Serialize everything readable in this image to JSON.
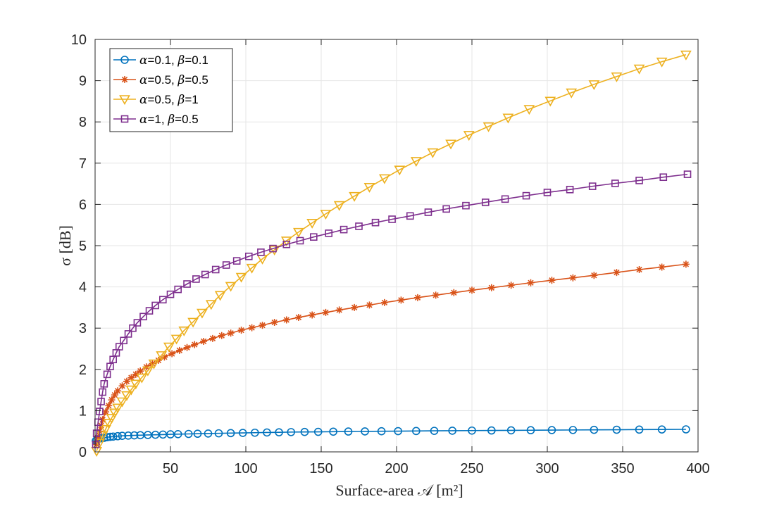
{
  "chart_data": {
    "type": "line",
    "title": "",
    "xlabel": "Surface-area 𝒜 [m²]",
    "ylabel": "σ [dB]",
    "xlim": [
      0,
      400
    ],
    "ylim": [
      0,
      10
    ],
    "xticks": [
      50,
      100,
      150,
      200,
      250,
      300,
      350,
      400
    ],
    "yticks": [
      0,
      1,
      2,
      3,
      4,
      5,
      6,
      7,
      8,
      9,
      10
    ],
    "grid": true,
    "legend_position": "top-left",
    "series": [
      {
        "name": "α=0.1, β=0.1",
        "label_parts": [
          "α",
          "=0.1, ",
          "β",
          "=0.1"
        ],
        "color": "#0072BD",
        "marker": "circle",
        "points": [
          [
            0.5,
            0.27
          ],
          [
            1,
            0.29
          ],
          [
            2,
            0.31
          ],
          [
            4,
            0.33
          ],
          [
            6,
            0.34
          ],
          [
            8,
            0.355
          ],
          [
            10,
            0.365
          ],
          [
            12,
            0.37
          ],
          [
            15,
            0.38
          ],
          [
            18,
            0.39
          ],
          [
            22,
            0.395
          ],
          [
            26,
            0.4
          ],
          [
            30,
            0.405
          ],
          [
            35,
            0.41
          ],
          [
            40,
            0.415
          ],
          [
            45,
            0.42
          ],
          [
            50,
            0.425
          ],
          [
            55,
            0.43
          ],
          [
            62,
            0.435
          ],
          [
            68,
            0.44
          ],
          [
            75,
            0.445
          ],
          [
            82,
            0.45
          ],
          [
            90,
            0.455
          ],
          [
            98,
            0.46
          ],
          [
            106,
            0.465
          ],
          [
            114,
            0.47
          ],
          [
            122,
            0.475
          ],
          [
            130,
            0.48
          ],
          [
            139,
            0.483
          ],
          [
            148,
            0.486
          ],
          [
            158,
            0.49
          ],
          [
            168,
            0.493
          ],
          [
            179,
            0.496
          ],
          [
            190,
            0.5
          ],
          [
            201,
            0.503
          ],
          [
            213,
            0.506
          ],
          [
            225,
            0.51
          ],
          [
            237,
            0.513
          ],
          [
            250,
            0.516
          ],
          [
            263,
            0.519
          ],
          [
            276,
            0.522
          ],
          [
            289,
            0.525
          ],
          [
            303,
            0.528
          ],
          [
            317,
            0.531
          ],
          [
            331,
            0.534
          ],
          [
            346,
            0.537
          ],
          [
            361,
            0.54
          ],
          [
            376,
            0.543
          ],
          [
            392,
            0.546
          ]
        ]
      },
      {
        "name": "α=0.5, β=0.5",
        "label_parts": [
          "α",
          "=0.5, ",
          "β",
          "=0.5"
        ],
        "color": "#D95319",
        "marker": "asterisk",
        "points": [
          [
            1,
            0.18
          ],
          [
            2,
            0.35
          ],
          [
            3,
            0.5
          ],
          [
            4,
            0.64
          ],
          [
            5,
            0.78
          ],
          [
            7,
            0.97
          ],
          [
            9,
            1.12
          ],
          [
            11,
            1.26
          ],
          [
            13,
            1.38
          ],
          [
            15,
            1.48
          ],
          [
            18,
            1.6
          ],
          [
            21,
            1.71
          ],
          [
            24,
            1.8
          ],
          [
            27,
            1.88
          ],
          [
            30,
            1.96
          ],
          [
            34,
            2.06
          ],
          [
            38,
            2.14
          ],
          [
            42,
            2.22
          ],
          [
            46,
            2.3
          ],
          [
            51,
            2.38
          ],
          [
            56,
            2.46
          ],
          [
            61,
            2.53
          ],
          [
            66,
            2.6
          ],
          [
            72,
            2.68
          ],
          [
            78,
            2.75
          ],
          [
            84,
            2.82
          ],
          [
            90,
            2.88
          ],
          [
            97,
            2.95
          ],
          [
            104,
            3.01
          ],
          [
            111,
            3.07
          ],
          [
            119,
            3.14
          ],
          [
            127,
            3.2
          ],
          [
            135,
            3.26
          ],
          [
            144,
            3.32
          ],
          [
            153,
            3.38
          ],
          [
            162,
            3.44
          ],
          [
            172,
            3.5
          ],
          [
            182,
            3.56
          ],
          [
            192,
            3.62
          ],
          [
            203,
            3.68
          ],
          [
            214,
            3.74
          ],
          [
            226,
            3.8
          ],
          [
            238,
            3.86
          ],
          [
            250,
            3.92
          ],
          [
            263,
            3.98
          ],
          [
            276,
            4.04
          ],
          [
            289,
            4.1
          ],
          [
            303,
            4.16
          ],
          [
            317,
            4.22
          ],
          [
            331,
            4.28
          ],
          [
            346,
            4.35
          ],
          [
            361,
            4.42
          ],
          [
            376,
            4.48
          ],
          [
            392,
            4.55
          ]
        ]
      },
      {
        "name": "α=0.5, β=1",
        "label_parts": [
          "α",
          "=0.5, ",
          "β",
          "=1"
        ],
        "color": "#EDB120",
        "marker": "triangle-down",
        "points": [
          [
            1,
            0.02
          ],
          [
            3,
            0.22
          ],
          [
            5,
            0.4
          ],
          [
            7,
            0.55
          ],
          [
            9,
            0.7
          ],
          [
            11,
            0.82
          ],
          [
            13,
            0.95
          ],
          [
            15,
            1.07
          ],
          [
            18,
            1.22
          ],
          [
            21,
            1.37
          ],
          [
            24,
            1.51
          ],
          [
            27,
            1.65
          ],
          [
            31,
            1.8
          ],
          [
            35,
            1.97
          ],
          [
            39,
            2.14
          ],
          [
            44,
            2.34
          ],
          [
            49,
            2.55
          ],
          [
            54,
            2.74
          ],
          [
            59,
            2.94
          ],
          [
            65,
            3.15
          ],
          [
            71,
            3.37
          ],
          [
            77,
            3.58
          ],
          [
            83,
            3.8
          ],
          [
            90,
            4.02
          ],
          [
            97,
            4.24
          ],
          [
            104,
            4.46
          ],
          [
            111,
            4.68
          ],
          [
            119,
            4.9
          ],
          [
            127,
            5.12
          ],
          [
            135,
            5.33
          ],
          [
            144,
            5.55
          ],
          [
            153,
            5.77
          ],
          [
            162,
            5.98
          ],
          [
            172,
            6.2
          ],
          [
            182,
            6.42
          ],
          [
            192,
            6.63
          ],
          [
            202,
            6.84
          ],
          [
            213,
            7.05
          ],
          [
            224,
            7.26
          ],
          [
            236,
            7.47
          ],
          [
            248,
            7.68
          ],
          [
            261,
            7.89
          ],
          [
            274,
            8.1
          ],
          [
            288,
            8.31
          ],
          [
            302,
            8.51
          ],
          [
            316,
            8.71
          ],
          [
            331,
            8.91
          ],
          [
            346,
            9.1
          ],
          [
            361,
            9.29
          ],
          [
            376,
            9.46
          ],
          [
            392,
            9.63
          ]
        ]
      },
      {
        "name": "α=1, β=0.5",
        "label_parts": [
          "α",
          "=1, ",
          "β",
          "=0.5"
        ],
        "color": "#7E2F8E",
        "marker": "square",
        "points": [
          [
            0.5,
            0.18
          ],
          [
            1,
            0.45
          ],
          [
            2,
            0.72
          ],
          [
            3,
            0.98
          ],
          [
            4,
            1.22
          ],
          [
            5,
            1.45
          ],
          [
            6,
            1.65
          ],
          [
            8,
            1.88
          ],
          [
            10,
            2.07
          ],
          [
            12,
            2.24
          ],
          [
            14,
            2.4
          ],
          [
            16,
            2.55
          ],
          [
            19,
            2.7
          ],
          [
            22,
            2.86
          ],
          [
            25,
            3.0
          ],
          [
            28,
            3.13
          ],
          [
            32,
            3.28
          ],
          [
            36,
            3.42
          ],
          [
            40,
            3.55
          ],
          [
            45,
            3.69
          ],
          [
            50,
            3.82
          ],
          [
            55,
            3.94
          ],
          [
            61,
            4.07
          ],
          [
            67,
            4.19
          ],
          [
            73,
            4.3
          ],
          [
            80,
            4.42
          ],
          [
            87,
            4.53
          ],
          [
            94,
            4.63
          ],
          [
            102,
            4.74
          ],
          [
            110,
            4.84
          ],
          [
            118,
            4.93
          ],
          [
            127,
            5.03
          ],
          [
            136,
            5.12
          ],
          [
            145,
            5.21
          ],
          [
            155,
            5.3
          ],
          [
            165,
            5.39
          ],
          [
            175,
            5.47
          ],
          [
            186,
            5.56
          ],
          [
            197,
            5.64
          ],
          [
            209,
            5.72
          ],
          [
            221,
            5.81
          ],
          [
            233,
            5.89
          ],
          [
            246,
            5.97
          ],
          [
            259,
            6.05
          ],
          [
            272,
            6.13
          ],
          [
            286,
            6.21
          ],
          [
            300,
            6.29
          ],
          [
            315,
            6.36
          ],
          [
            330,
            6.44
          ],
          [
            345,
            6.51
          ],
          [
            361,
            6.58
          ],
          [
            377,
            6.66
          ],
          [
            393,
            6.73
          ]
        ]
      }
    ]
  }
}
